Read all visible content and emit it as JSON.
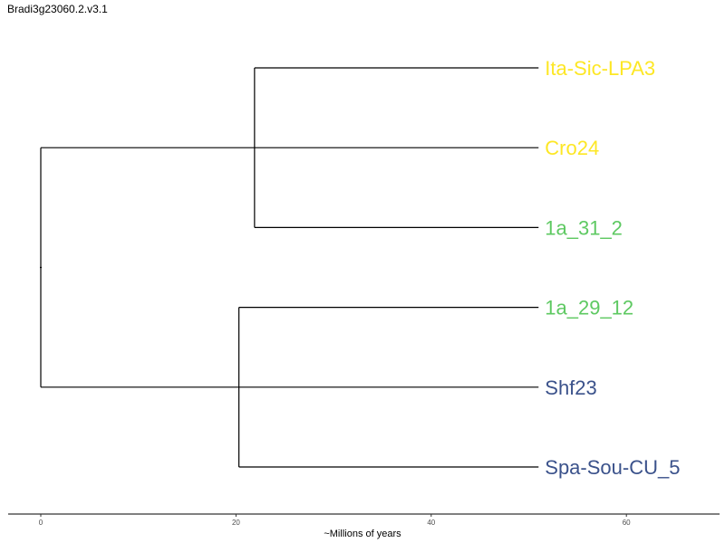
{
  "title": "Bradi3g23060.2.v3.1",
  "x_axis": {
    "label": "~Millions of years",
    "range": [
      0,
      69
    ],
    "ticks": [
      0,
      20,
      40,
      60
    ]
  },
  "colors": {
    "branch": "#000000",
    "yellow": "#fde725",
    "green": "#5ec962",
    "blue": "#3b528b"
  },
  "tips": [
    {
      "label": "Ita-Sic-LPA3",
      "color": "#fde725"
    },
    {
      "label": "Cro24",
      "color": "#fde725"
    },
    {
      "label": "1a_31_2",
      "color": "#5ec962"
    },
    {
      "label": "1a_29_12",
      "color": "#5ec962"
    },
    {
      "label": "Shf23",
      "color": "#3b528b"
    },
    {
      "label": "Spa-Sou-CU_5",
      "color": "#3b528b"
    }
  ],
  "tree": {
    "root_age": 0,
    "branch_length_to_tips": 51,
    "clades": [
      {
        "node_age": 21.9,
        "tips": [
          0,
          1,
          2
        ]
      },
      {
        "node_age": 20.3,
        "tips": [
          3,
          4,
          5
        ]
      }
    ]
  }
}
